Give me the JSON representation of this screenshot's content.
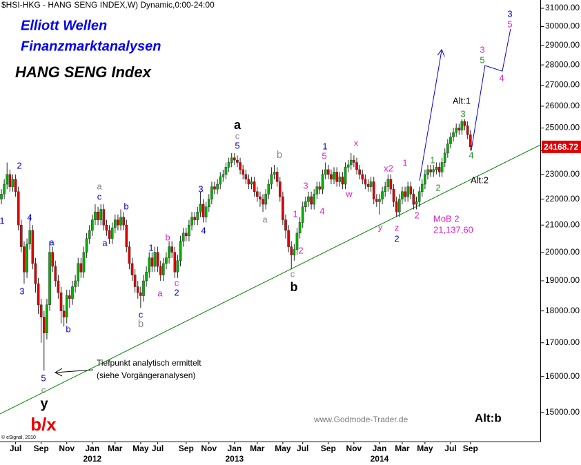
{
  "chart_data": {
    "type": "candlestick",
    "header": "$HSI-HKG - HANG SENG INDEX,W) Dynamic,0:00-24:00",
    "title_lines": [
      "Elliott Wellen",
      "Finanzmarktanalysen"
    ],
    "title": "HANG SENG Index",
    "log_scale": true,
    "ylim": [
      14235,
      31464
    ],
    "yticks": [
      {
        "value": 15000,
        "label": "15000.00"
      },
      {
        "value": 16000,
        "label": "16000.00"
      },
      {
        "value": 17000,
        "label": "17000.00"
      },
      {
        "value": 18000,
        "label": "18000.00"
      },
      {
        "value": 19000,
        "label": "19000.00"
      },
      {
        "value": 20000,
        "label": "20000.00"
      },
      {
        "value": 21000,
        "label": "21000.00"
      },
      {
        "value": 22000,
        "label": "22000.00"
      },
      {
        "value": 23000,
        "label": "23000.00"
      },
      {
        "value": 24000,
        "label": "24000.00"
      },
      {
        "value": 25000,
        "label": "25000.00"
      },
      {
        "value": 26000,
        "label": "26000.00"
      },
      {
        "value": 27000,
        "label": "27000.00"
      },
      {
        "value": 28000,
        "label": "28000.00"
      },
      {
        "value": 29000,
        "label": "29000.00"
      },
      {
        "value": 30000,
        "label": "30000.00"
      },
      {
        "value": 31000,
        "label": "31000.00"
      }
    ],
    "categories": [
      null,
      null,
      null,
      null,
      null,
      "Jul",
      null,
      null,
      null,
      null,
      null,
      null,
      null,
      null,
      "Sep",
      null,
      null,
      null,
      null,
      null,
      null,
      null,
      null,
      "Nov",
      null,
      null,
      null,
      null,
      null,
      null,
      null,
      null,
      "Jan",
      null,
      null,
      null,
      null,
      null,
      null,
      null,
      "Mar",
      null,
      null,
      null,
      null,
      null,
      null,
      null,
      null,
      "May",
      null,
      null,
      null,
      null,
      null,
      "Jul",
      null,
      null,
      null,
      null,
      null,
      null,
      null,
      null,
      null,
      "Sep",
      null,
      null,
      null,
      null,
      null,
      null,
      null,
      "Nov",
      null,
      null,
      null,
      null,
      null,
      null,
      null,
      null,
      "Jan",
      null,
      null,
      null,
      null,
      null,
      null,
      null,
      "Mar",
      null,
      null,
      null,
      null,
      null,
      null,
      null,
      null,
      "May",
      null,
      null,
      null,
      null,
      null,
      null,
      "Jul",
      null,
      null,
      null,
      null,
      null,
      null,
      null,
      null,
      "Sep",
      null,
      null,
      null,
      null,
      null,
      null,
      null,
      null,
      "Nov",
      null,
      null,
      null,
      null,
      null,
      null,
      null,
      null,
      "Jan",
      null,
      null,
      null,
      null,
      null,
      null,
      null,
      "Mar",
      null,
      null,
      null,
      null,
      null,
      null,
      null,
      "May",
      null,
      null,
      null,
      null,
      null,
      null,
      null,
      null,
      "Jul",
      null,
      null,
      null,
      null,
      null,
      null,
      "Sep"
    ],
    "years": [
      {
        "label": "2012",
        "category": 32
      },
      {
        "label": "2013",
        "category": 82
      },
      {
        "label": "2014",
        "category": 133
      }
    ],
    "up_color": "#00b000",
    "down_color": "#dd0000",
    "open": [
      22000,
      22200,
      22600,
      23000,
      22500,
      22800,
      22300,
      21000,
      20200,
      19300,
      20300,
      20800,
      19600,
      18900,
      18200,
      17800,
      17300,
      18200,
      20000,
      19500,
      19000,
      18600,
      18000,
      17800,
      18500,
      18400,
      18800,
      19000,
      19600,
      19300,
      20000,
      20500,
      20800,
      21200,
      21500,
      21200,
      21600,
      21000,
      20800,
      20500,
      20900,
      21200,
      21000,
      21300,
      21000,
      20200,
      19600,
      19200,
      18800,
      18600,
      18500,
      19000,
      19300,
      19800,
      19500,
      20000,
      19500,
      19200,
      19600,
      19800,
      20200,
      20000,
      19300,
      19700,
      20400,
      20700,
      20600,
      21000,
      21300,
      21200,
      21500,
      21800,
      21300,
      21700,
      22000,
      22500,
      22400,
      22600,
      22900,
      23000,
      23300,
      23500,
      23700,
      23600,
      23500,
      23200,
      23000,
      22800,
      22600,
      22700,
      22300,
      22100,
      22000,
      21800,
      22200,
      22600,
      23000,
      23100,
      22700,
      22100,
      21200,
      20800,
      20200,
      19900,
      20100,
      20700,
      21100,
      21700,
      21900,
      22100,
      21800,
      22200,
      22500,
      22400,
      23000,
      23200,
      23000,
      22800,
      23100,
      22700,
      22900,
      22600,
      23300,
      23400,
      23600,
      23500,
      23200,
      23000,
      22800,
      22600,
      22500,
      22700,
      22000,
      21900,
      22000,
      22300,
      22500,
      22800,
      22400,
      21900,
      21500,
      22000,
      22300,
      22100,
      22500,
      22200,
      21800,
      21900,
      22300,
      22600,
      23000,
      23200,
      23100,
      23200,
      23300,
      23100,
      23500,
      23900,
      24300,
      24600,
      24800,
      25000,
      24900,
      25300,
      25100,
      24700
    ],
    "high": [
      22400,
      22800,
      23500,
      23200,
      23000,
      23000,
      22500,
      21200,
      20400,
      20500,
      21300,
      21000,
      19800,
      19100,
      18400,
      18000,
      18400,
      20400,
      20200,
      19700,
      19200,
      18800,
      18200,
      18700,
      18700,
      19000,
      19200,
      19800,
      19800,
      20200,
      20700,
      21000,
      21400,
      21800,
      21700,
      21800,
      21800,
      21200,
      21000,
      21100,
      21400,
      21400,
      21600,
      21500,
      21200,
      20400,
      19800,
      19400,
      19000,
      18800,
      19200,
      19500,
      20000,
      20000,
      20200,
      20200,
      19700,
      19800,
      20000,
      20400,
      20400,
      20200,
      19900,
      20600,
      20900,
      20900,
      21200,
      21500,
      21500,
      21700,
      22300,
      22000,
      21900,
      22200,
      22700,
      22700,
      22800,
      23100,
      23200,
      23500,
      23700,
      23900,
      23900,
      23800,
      23700,
      23400,
      23200,
      23000,
      22900,
      22900,
      22500,
      22300,
      22200,
      22400,
      22800,
      23300,
      23400,
      23300,
      22900,
      22300,
      21400,
      21000,
      20400,
      20300,
      20900,
      21300,
      21900,
      22100,
      22300,
      22300,
      22400,
      22700,
      22700,
      23200,
      23500,
      23400,
      23200,
      23300,
      23300,
      23100,
      23100,
      23500,
      23600,
      23900,
      23800,
      23700,
      23400,
      23200,
      23000,
      22800,
      22900,
      22900,
      22200,
      22200,
      22500,
      22700,
      23000,
      23000,
      22600,
      22100,
      22200,
      22500,
      22500,
      22700,
      22700,
      22400,
      22100,
      22500,
      22800,
      23200,
      23400,
      23400,
      23400,
      23500,
      23500,
      23700,
      24100,
      24500,
      24800,
      25000,
      25200,
      25200,
      25400,
      25400,
      25300,
      24900
    ],
    "low": [
      21800,
      22000,
      22400,
      22300,
      22300,
      22100,
      20800,
      20000,
      18900,
      19100,
      20100,
      19400,
      18600,
      17900,
      17000,
      16170,
      17100,
      18000,
      19300,
      18800,
      18400,
      17600,
      17500,
      17600,
      18100,
      18200,
      18600,
      18800,
      19100,
      19100,
      19800,
      20300,
      20600,
      21000,
      21000,
      21000,
      20800,
      20600,
      20300,
      20300,
      20700,
      20800,
      20800,
      20800,
      20000,
      19400,
      19000,
      18600,
      18400,
      18100,
      18300,
      18800,
      19100,
      19300,
      19300,
      19300,
      19000,
      19000,
      19400,
      19600,
      19800,
      19100,
      19100,
      19500,
      20200,
      20400,
      20400,
      20800,
      21000,
      21000,
      21300,
      21100,
      21100,
      21500,
      21800,
      22200,
      22200,
      22400,
      22700,
      22800,
      23100,
      23300,
      23400,
      23300,
      23000,
      22800,
      22600,
      22400,
      22400,
      22100,
      21900,
      21700,
      21500,
      21600,
      22000,
      22400,
      22800,
      22500,
      21900,
      21000,
      20500,
      20000,
      19400,
      19700,
      19900,
      20500,
      20900,
      21500,
      21700,
      21600,
      21600,
      22000,
      22200,
      22200,
      22800,
      22800,
      22600,
      22600,
      22500,
      22500,
      22400,
      22400,
      23100,
      23200,
      23300,
      23000,
      22800,
      22600,
      22400,
      22300,
      22300,
      21800,
      21700,
      21400,
      21800,
      22100,
      22300,
      22200,
      21700,
      21300,
      21300,
      21800,
      21900,
      21900,
      22000,
      21600,
      21600,
      21700,
      22100,
      22400,
      22800,
      22900,
      22900,
      23000,
      22900,
      22900,
      23300,
      23700,
      24100,
      24400,
      24600,
      24700,
      24700,
      24900,
      24500,
      24000
    ],
    "close": [
      22200,
      22600,
      23000,
      22500,
      22800,
      22300,
      21000,
      20200,
      19300,
      20300,
      20800,
      19600,
      18900,
      18200,
      17800,
      17300,
      18200,
      20000,
      19500,
      19000,
      18600,
      18000,
      17800,
      18500,
      18400,
      18800,
      19000,
      19600,
      19300,
      20000,
      20500,
      20800,
      21200,
      21500,
      21200,
      21600,
      21000,
      20800,
      20500,
      20900,
      21200,
      21000,
      21300,
      21000,
      20200,
      19600,
      19200,
      18800,
      18600,
      18500,
      19000,
      19300,
      19800,
      19500,
      20000,
      19500,
      19200,
      19600,
      19800,
      20200,
      20000,
      19300,
      19700,
      20400,
      20700,
      20600,
      21000,
      21300,
      21200,
      21500,
      21800,
      21300,
      21700,
      22000,
      22500,
      22400,
      22600,
      22900,
      23000,
      23300,
      23500,
      23700,
      23600,
      23500,
      23200,
      23000,
      22800,
      22600,
      22700,
      22300,
      22100,
      22000,
      21800,
      22200,
      22600,
      23000,
      23100,
      22700,
      22100,
      21200,
      20800,
      20200,
      19900,
      20100,
      20700,
      21100,
      21700,
      21900,
      22100,
      21800,
      22200,
      22500,
      22400,
      23000,
      23200,
      23000,
      22800,
      23100,
      22700,
      22900,
      22600,
      23300,
      23400,
      23600,
      23500,
      23200,
      23000,
      22800,
      22600,
      22500,
      22700,
      22000,
      21900,
      22000,
      22300,
      22500,
      22800,
      22400,
      21900,
      21500,
      22000,
      22300,
      22100,
      22500,
      22200,
      21800,
      21900,
      22300,
      22600,
      23000,
      23200,
      23100,
      23200,
      23300,
      23100,
      23500,
      23900,
      24300,
      24600,
      24800,
      25000,
      24900,
      25300,
      25100,
      24700,
      24168.72
    ],
    "last_price": 24168.72,
    "trendline": {
      "color": "#008000",
      "x": [
        -0.5,
        189.5
      ],
      "values": [
        14960,
        24250
      ]
    },
    "projections": [
      {
        "color": "#0000cc",
        "x": [
          147.1,
          154.9
        ],
        "values": [
          22745,
          28780
        ]
      },
      {
        "color": "#0000cc",
        "x": [
          165.3,
          170.1,
          176.2,
          179.1
        ],
        "values": [
          24015,
          27970,
          27690,
          29870
        ]
      }
    ],
    "wave_labels": [
      {
        "text": "2",
        "color": "#0000dd"
      },
      {
        "text": "1",
        "color": "#0000dd"
      },
      {
        "text": "4",
        "color": "#0000dd"
      },
      {
        "text": "3",
        "color": "#0000dd"
      },
      {
        "text": "5",
        "color": "#0000dd"
      },
      {
        "text": "c",
        "color": "#888888"
      },
      {
        "text": "y",
        "color": "#000000"
      },
      {
        "text": "b/x",
        "color": "#ee0000"
      },
      {
        "text": "a",
        "color": "#0000dd"
      },
      {
        "text": "b",
        "color": "#0000dd"
      },
      {
        "text": "a",
        "color": "#888888"
      },
      {
        "text": "c",
        "color": "#0000dd"
      },
      {
        "text": "a",
        "color": "#0000dd"
      },
      {
        "text": "b",
        "color": "#0000dd"
      },
      {
        "text": "1",
        "color": "#0000dd"
      },
      {
        "text": "b",
        "color": "#e020c8"
      },
      {
        "text": "c",
        "color": "#0000dd"
      },
      {
        "text": "b",
        "color": "#888888"
      },
      {
        "text": "a",
        "color": "#e020c8"
      },
      {
        "text": "c",
        "color": "#e020c8"
      },
      {
        "text": "2",
        "color": "#0000dd"
      },
      {
        "text": "3",
        "color": "#0000dd"
      },
      {
        "text": "4",
        "color": "#0000dd"
      },
      {
        "text": "a",
        "color": "#000000"
      },
      {
        "text": "c",
        "color": "#888888"
      },
      {
        "text": "5",
        "color": "#0000dd"
      },
      {
        "text": "b",
        "color": "#888888"
      },
      {
        "text": "a",
        "color": "#888888"
      },
      {
        "text": "1",
        "color": "#e020c8"
      },
      {
        "text": "2",
        "color": "#e020c8"
      },
      {
        "text": "c",
        "color": "#888888"
      },
      {
        "text": "b",
        "color": "#000000"
      },
      {
        "text": "3",
        "color": "#e020c8"
      },
      {
        "text": "4",
        "color": "#e020c8"
      },
      {
        "text": "1",
        "color": "#0000dd"
      },
      {
        "text": "5",
        "color": "#e020c8"
      },
      {
        "text": "x",
        "color": "#e020c8"
      },
      {
        "text": "w",
        "color": "#e020c8"
      },
      {
        "text": "x2",
        "color": "#e020c8"
      },
      {
        "text": "y",
        "color": "#e020c8"
      },
      {
        "text": "z",
        "color": "#e020c8"
      },
      {
        "text": "2",
        "color": "#0000dd"
      },
      {
        "text": "1",
        "color": "#e020c8"
      },
      {
        "text": "2",
        "color": "#e020c8"
      },
      {
        "text": "1",
        "color": "#228b22"
      },
      {
        "text": "2",
        "color": "#228b22"
      },
      {
        "text": "3",
        "color": "#228b22"
      },
      {
        "text": "4",
        "color": "#228b22"
      },
      {
        "text": "Alt:1",
        "color": "#000000"
      },
      {
        "text": "Alt:2",
        "color": "#000000"
      },
      {
        "text": "3",
        "color": "#0000dd"
      },
      {
        "text": "5",
        "color": "#e020c8"
      },
      {
        "text": "3",
        "color": "#e020c8"
      },
      {
        "text": "5",
        "color": "#228b22"
      },
      {
        "text": "4",
        "color": "#e020c8"
      }
    ],
    "mob_lines": [
      "MoB 2",
      "21,137,60"
    ],
    "note_lines": [
      "Tiefpunkt analytisch ermittelt",
      "(siehe Vorgängeranalysen)"
    ],
    "alt_label": "Alt:b",
    "watermark": "www.Godmode-Trader.de",
    "copyright": "© eSignal, 2010"
  }
}
